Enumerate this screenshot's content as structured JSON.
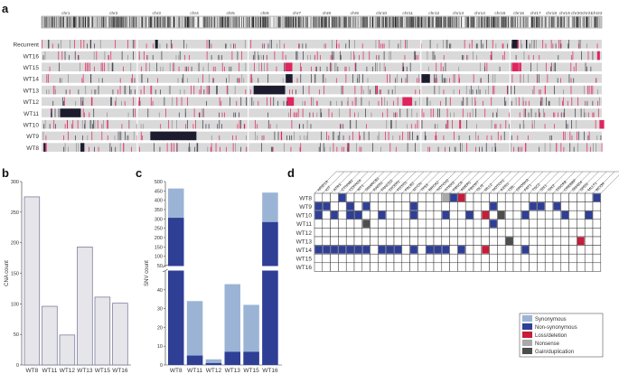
{
  "panels": {
    "a": "a",
    "b": "b",
    "c": "c",
    "d": "d"
  },
  "colors": {
    "track_bg": "#d9d9d9",
    "amp": "#1c1c2e",
    "loss": "#e0245e",
    "bar_fill": "#e5e5ea",
    "bar_edge": "#6f6f93",
    "syn": "#9bb4d6",
    "nonsyn": "#2f3f95",
    "loss_del": "#c41e3a",
    "nonsense": "#a9a9a9",
    "gain": "#4d4d4d"
  },
  "chart_data": [
    {
      "panel": "a",
      "type": "heatmap",
      "title": "",
      "chromosomes": [
        "chr1",
        "chr2",
        "chr3",
        "chr4",
        "chr5",
        "chr6",
        "chr7",
        "chr8",
        "chr9",
        "chr10",
        "chr11",
        "chr12",
        "chr13",
        "chr14",
        "chr15",
        "chr16",
        "chr17",
        "chr18",
        "chr19",
        "chr20",
        "chr21",
        "chr22"
      ],
      "chromosome_length_mb": [
        249,
        243,
        198,
        191,
        181,
        171,
        159,
        146,
        141,
        136,
        135,
        134,
        115,
        107,
        102,
        90,
        83,
        78,
        59,
        64,
        47,
        51
      ],
      "rows": [
        "Recurrent",
        "WT16",
        "WT15",
        "WT14",
        "WT13",
        "WT12",
        "WT11",
        "WT10",
        "WT9",
        "WT8"
      ],
      "blocks": [
        {
          "row": "Recurrent",
          "mb": [
            [
              34,
              36,
              "amp"
            ],
            [
              250,
              254,
              "amp"
            ],
            [
              585,
              598,
              "amp"
            ],
            [
              860,
              864,
              "amp"
            ],
            [
              2418,
              2446,
              "amp"
            ],
            [
              2446,
              2452,
              "loss"
            ],
            [
              2490,
              2496,
              "amp"
            ]
          ]
        },
        {
          "row": "WT16",
          "mb": [
            [
              2856,
              2870,
              "loss"
            ]
          ]
        },
        {
          "row": "WT15",
          "mb": [
            [
              1251,
              1289,
              "loss"
            ],
            [
              2418,
              2452,
              "loss"
            ],
            [
              2454,
              2466,
              "loss"
            ]
          ]
        },
        {
          "row": "WT14",
          "mb": [
            [
              1255,
              1290,
              "amp"
            ],
            [
              1950,
              1996,
              "amp"
            ]
          ]
        },
        {
          "row": "WT13",
          "mb": [
            [
              1090,
              1252,
              "amp"
            ],
            [
              1720,
              1728,
              "loss"
            ]
          ]
        },
        {
          "row": "WT12",
          "mb": [
            [
              1262,
              1297,
              "loss"
            ],
            [
              1855,
              1905,
              "loss"
            ]
          ]
        },
        {
          "row": "WT11",
          "mb": [
            [
              95,
              202,
              "amp"
            ]
          ]
        },
        {
          "row": "WT10",
          "mb": [
            [
              2868,
              2892,
              "loss"
            ]
          ]
        },
        {
          "row": "WT9",
          "mb": [
            [
              559,
              796,
              "amp"
            ],
            [
              1230,
              1236,
              "loss"
            ]
          ]
        },
        {
          "row": "WT8",
          "mb": [
            [
              10,
              20,
              "amp"
            ],
            [
              20,
              26,
              "loss"
            ],
            [
              200,
              220,
              "amp"
            ]
          ]
        }
      ]
    },
    {
      "panel": "b",
      "type": "bar",
      "title": "",
      "categories": [
        "WT8",
        "WT11",
        "WT12",
        "WT13",
        "WT15",
        "WT16"
      ],
      "values": [
        275,
        96,
        49,
        193,
        111,
        101
      ],
      "xlabel": "",
      "ylabel": "CNA count",
      "ylim": [
        0,
        300
      ],
      "yticks": [
        "0",
        "50",
        "100",
        "150",
        "200",
        "250",
        "300"
      ]
    },
    {
      "panel": "c",
      "type": "bar",
      "title": "",
      "stacked": true,
      "broken_axis": {
        "lower": [
          0,
          50
        ],
        "upper": [
          50,
          500
        ]
      },
      "categories": [
        "WT8",
        "WT11",
        "WT12",
        "WT13",
        "WT15",
        "WT16"
      ],
      "series": [
        {
          "name": "Non-synonymous",
          "values": [
            306,
            5,
            1,
            7,
            7,
            283
          ]
        },
        {
          "name": "Synonymous",
          "values": [
            157,
            29,
            2,
            36,
            25,
            158
          ]
        }
      ],
      "totals": [
        463,
        34,
        3,
        43,
        32,
        441
      ],
      "xlabel": "",
      "ylabel": "SNV count",
      "yticks_lower": [
        "0",
        "10",
        "20",
        "30",
        "40"
      ],
      "yticks_upper": [
        "50",
        "100",
        "150",
        "200",
        "250",
        "300",
        "350",
        "400",
        "450",
        "500"
      ]
    },
    {
      "panel": "d",
      "type": "table",
      "title": "",
      "rows": [
        "WT8",
        "WT9",
        "WT10",
        "WT11",
        "WT12",
        "WT13",
        "WT14",
        "WT15",
        "WT16"
      ],
      "genes": [
        "ARID1A",
        "KIT",
        "ATRX",
        "CTNNB1",
        "CDKN2A",
        "WT1",
        "SMARCB1",
        "RAD51",
        "FANCD2",
        "DICER1",
        "FOXO1",
        "PALB2",
        "MYCN",
        "TP53",
        "BRCA2",
        "NOTCH2",
        "NTRK3",
        "FANCA",
        "AMER1",
        "FBXW7",
        "GLI3",
        "MLL2",
        "NOTCH1",
        "AXIN1",
        "CBL",
        "DROSHA",
        "FAT1",
        "TSC2",
        "SIX1",
        "SIX2",
        "DGCR8",
        "CREBBP",
        "SMAD4",
        "SPEN",
        "MLLT1",
        "BCOR"
      ],
      "cells": [
        [
          "WT8",
          3,
          "nonsyn"
        ],
        [
          "WT8",
          16,
          "nonsense"
        ],
        [
          "WT8",
          17,
          "nonsyn"
        ],
        [
          "WT8",
          18,
          "loss"
        ],
        [
          "WT8",
          35,
          "nonsyn"
        ],
        [
          "WT9",
          0,
          "nonsyn"
        ],
        [
          "WT9",
          1,
          "nonsyn"
        ],
        [
          "WT9",
          4,
          "nonsyn"
        ],
        [
          "WT9",
          6,
          "nonsyn"
        ],
        [
          "WT9",
          12,
          "nonsyn"
        ],
        [
          "WT9",
          22,
          "nonsyn"
        ],
        [
          "WT9",
          27,
          "nonsyn"
        ],
        [
          "WT9",
          28,
          "nonsyn"
        ],
        [
          "WT9",
          30,
          "nonsyn"
        ],
        [
          "WT10",
          0,
          "nonsyn"
        ],
        [
          "WT10",
          2,
          "nonsyn"
        ],
        [
          "WT10",
          4,
          "nonsyn"
        ],
        [
          "WT10",
          5,
          "nonsyn"
        ],
        [
          "WT10",
          8,
          "nonsyn"
        ],
        [
          "WT10",
          12,
          "nonsyn"
        ],
        [
          "WT10",
          16,
          "nonsyn"
        ],
        [
          "WT10",
          19,
          "nonsyn"
        ],
        [
          "WT10",
          21,
          "loss"
        ],
        [
          "WT10",
          23,
          "gain"
        ],
        [
          "WT10",
          26,
          "nonsyn"
        ],
        [
          "WT10",
          31,
          "nonsyn"
        ],
        [
          "WT10",
          34,
          "nonsyn"
        ],
        [
          "WT11",
          6,
          "gain"
        ],
        [
          "WT11",
          22,
          "nonsyn"
        ],
        [
          "WT13",
          24,
          "gain"
        ],
        [
          "WT13",
          33,
          "loss"
        ],
        [
          "WT14",
          0,
          "nonsyn"
        ],
        [
          "WT14",
          1,
          "nonsyn"
        ],
        [
          "WT14",
          2,
          "nonsyn"
        ],
        [
          "WT14",
          3,
          "nonsyn"
        ],
        [
          "WT14",
          4,
          "nonsyn"
        ],
        [
          "WT14",
          5,
          "nonsyn"
        ],
        [
          "WT14",
          6,
          "nonsyn"
        ],
        [
          "WT14",
          8,
          "nonsyn"
        ],
        [
          "WT14",
          9,
          "nonsyn"
        ],
        [
          "WT14",
          10,
          "nonsyn"
        ],
        [
          "WT14",
          12,
          "nonsyn"
        ],
        [
          "WT14",
          14,
          "nonsyn"
        ],
        [
          "WT14",
          15,
          "nonsyn"
        ],
        [
          "WT14",
          16,
          "nonsyn"
        ],
        [
          "WT14",
          18,
          "nonsyn"
        ],
        [
          "WT14",
          21,
          "loss"
        ],
        [
          "WT14",
          26,
          "nonsyn"
        ]
      ],
      "legend": [
        "Synonymous",
        "Non-synonymous",
        "Loss/deletion",
        "Nonsense",
        "Gain/duplication"
      ]
    }
  ]
}
